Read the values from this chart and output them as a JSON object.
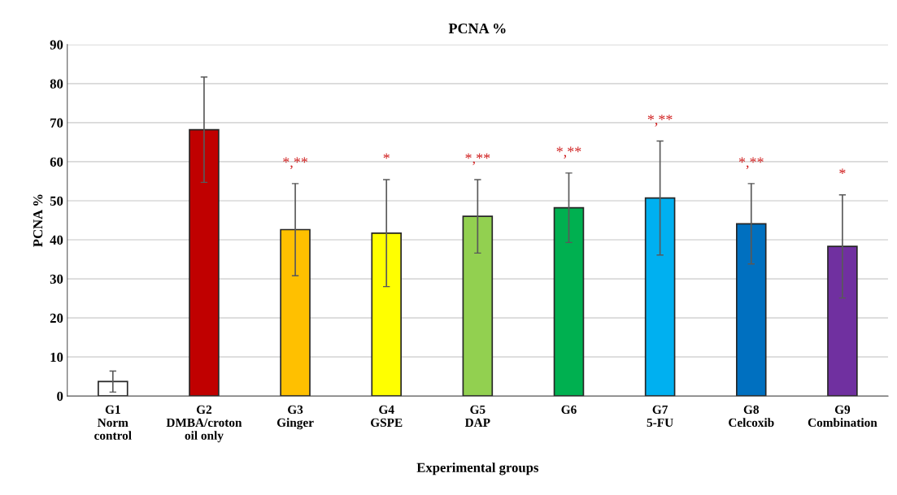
{
  "chart_data": {
    "type": "bar",
    "title": "PCNA %",
    "xlabel": "Experimental groups",
    "ylabel": "PCNA %",
    "categories": [
      "G1\nNorm\ncontrol",
      "G2\nDMBA/croton\noil only",
      "G3\nGinger",
      "G4\nGSPE",
      "G5\nDAP",
      "G6",
      "G7\n5-FU",
      "G8\nCelcoxib",
      "G9\nCombination"
    ],
    "values": [
      3.7,
      68.2,
      42.6,
      41.7,
      46.0,
      48.2,
      50.7,
      44.1,
      38.3
    ],
    "errors": [
      2.7,
      13.5,
      11.8,
      13.7,
      9.4,
      8.9,
      14.6,
      10.3,
      13.2
    ],
    "colors": [
      "#ffffff",
      "#c00000",
      "#ffc000",
      "#ffff00",
      "#92d050",
      "#00b050",
      "#00b0f0",
      "#0070c0",
      "#7030a0"
    ],
    "ylim": [
      0,
      90
    ],
    "yticks": [
      0,
      10,
      20,
      30,
      40,
      50,
      60,
      70,
      80,
      90
    ],
    "grid": "y",
    "annotations": [
      "*,**",
      "*",
      "*,**",
      "*,**",
      "*,**",
      "*,**",
      "*"
    ]
  }
}
